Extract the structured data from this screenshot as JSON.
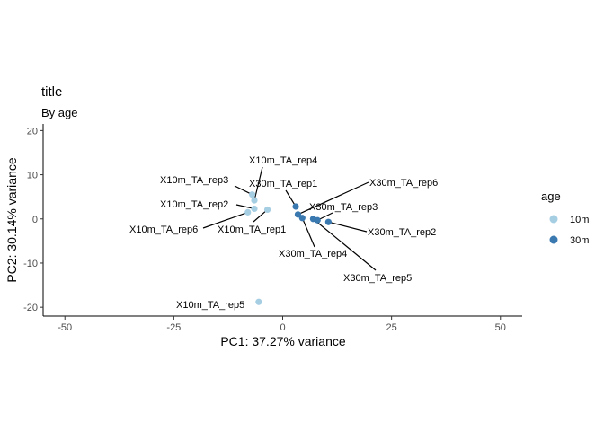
{
  "chart_data": {
    "type": "scatter",
    "title": "title",
    "subtitle": "By age",
    "xlabel": "PC1: 37.27% variance",
    "ylabel": "PC2: 30.14% variance",
    "xlim": [
      -55,
      55
    ],
    "ylim": [
      -22,
      21.5
    ],
    "x_ticks": [
      -50,
      -25,
      0,
      25,
      50
    ],
    "y_ticks": [
      -20,
      -10,
      0,
      10,
      20
    ],
    "x_tick_labels": [
      "-50",
      "-25",
      "0",
      "25",
      "50"
    ],
    "y_tick_labels": [
      "-20",
      "-10",
      "0",
      "10",
      "20"
    ],
    "grid": false,
    "legend": {
      "title": "age",
      "position": "right",
      "entries": [
        {
          "label": "10m",
          "color": "#a6cee3"
        },
        {
          "label": "30m",
          "color": "#3a78b0"
        }
      ]
    },
    "series": [
      {
        "group": "10m",
        "color": "#a6cee3",
        "points": [
          {
            "label": "X10m_TA_rep1",
            "x": -3.5,
            "y": 2.1
          },
          {
            "label": "X10m_TA_rep2",
            "x": -6.5,
            "y": 2.3
          },
          {
            "label": "X10m_TA_rep3",
            "x": -7.0,
            "y": 5.5
          },
          {
            "label": "X10m_TA_rep4",
            "x": -6.5,
            "y": 4.2
          },
          {
            "label": "X10m_TA_rep5",
            "x": -5.5,
            "y": -18.8
          },
          {
            "label": "X10m_TA_rep6",
            "x": -8.0,
            "y": 1.5
          }
        ]
      },
      {
        "group": "30m",
        "color": "#3a78b0",
        "points": [
          {
            "label": "X30m_TA_rep1",
            "x": 3.0,
            "y": 2.8
          },
          {
            "label": "X30m_TA_rep2",
            "x": 10.5,
            "y": -0.7
          },
          {
            "label": "X30m_TA_rep3",
            "x": 8.0,
            "y": -0.3
          },
          {
            "label": "X30m_TA_rep4",
            "x": 4.5,
            "y": 0.2
          },
          {
            "label": "X30m_TA_rep5",
            "x": 7.0,
            "y": 0.0
          },
          {
            "label": "X30m_TA_rep6",
            "x": 3.5,
            "y": 1.0
          }
        ]
      }
    ]
  }
}
